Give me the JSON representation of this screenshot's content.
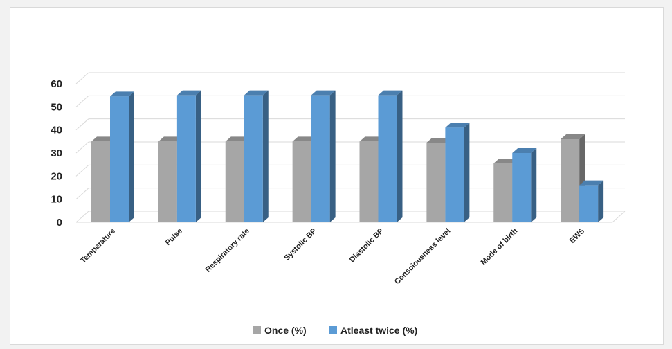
{
  "chart_data": {
    "type": "bar",
    "categories": [
      "Temperature",
      "Pulse",
      "Respiratory rate",
      "Systolic BP",
      "Diastolic BP",
      "Consciousness level",
      "Mode of birth",
      "EWS"
    ],
    "series": [
      {
        "name": "Once (%)",
        "values": [
          35,
          35,
          35,
          35,
          35,
          34.5,
          25.5,
          36
        ],
        "color": "#a6a6a6"
      },
      {
        "name": "Atleast twice (%)",
        "values": [
          54.5,
          55,
          55,
          55,
          55,
          41,
          30,
          16
        ],
        "color": "#5b9bd5"
      }
    ],
    "ylim": [
      0,
      60
    ],
    "yticks": [
      0,
      10,
      20,
      30,
      40,
      50,
      60
    ],
    "grid": true,
    "legend": "bottom",
    "style": "3d-clustered-column"
  }
}
